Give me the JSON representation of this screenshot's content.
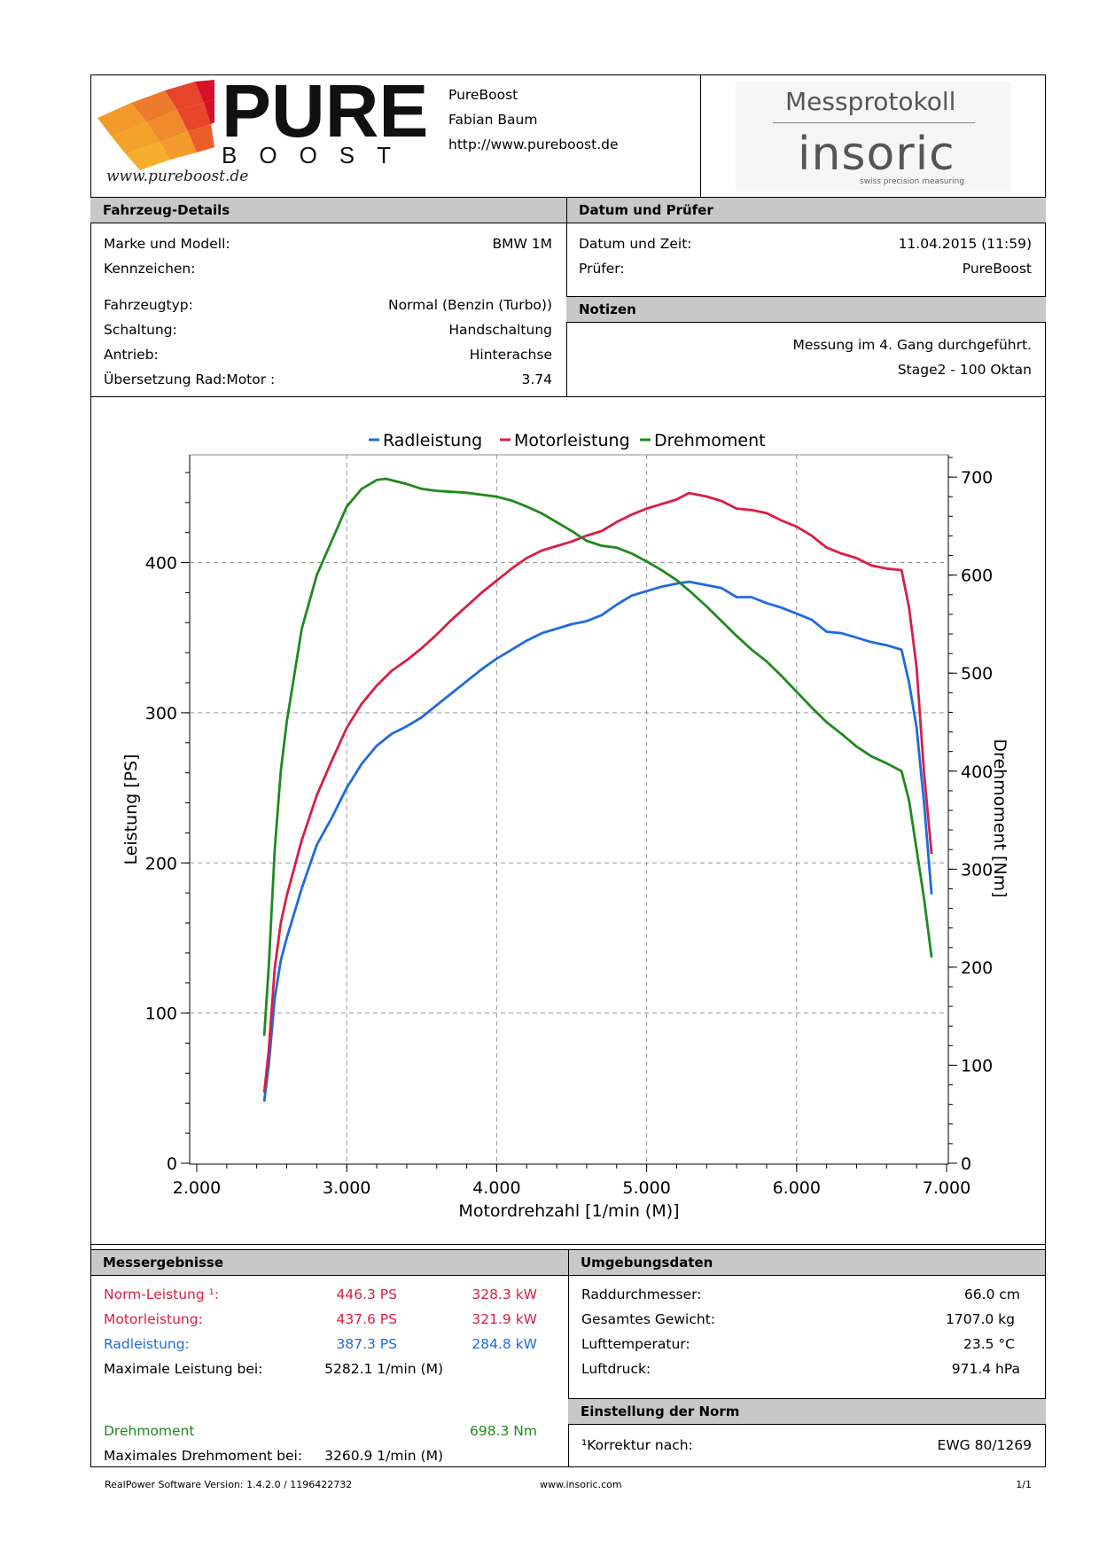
{
  "header": {
    "company_name": "PureBoost",
    "person": "Fabian Baum",
    "url": "http://www.pureboost.de",
    "logo_word": "PURE",
    "logo_sub": "BOOST",
    "logo_script": "www.pureboost.de",
    "protocol_title": "Messprotokoll",
    "brand": "insoric",
    "brand_tagline": "swiss precision measuring"
  },
  "vehicle": {
    "section_title": "Fahrzeug-Details",
    "rows": [
      {
        "label": "Marke und Modell:",
        "value": "BMW 1M"
      },
      {
        "label": "Kennzeichen:",
        "value": ""
      },
      {
        "label": "Fahrzeugtyp:",
        "value": "Normal (Benzin (Turbo))"
      },
      {
        "label": "Schaltung:",
        "value": "Handschaltung"
      },
      {
        "label": "Antrieb:",
        "value": "Hinterachse"
      },
      {
        "label": "Übersetzung Rad:Motor :",
        "value": "3.74"
      }
    ]
  },
  "date_tester": {
    "section_title": "Datum und Prüfer",
    "rows": [
      {
        "label": "Datum und Zeit:",
        "value": "11.04.2015 (11:59)"
      },
      {
        "label": "Prüfer:",
        "value": "PureBoost"
      }
    ]
  },
  "notes": {
    "section_title": "Notizen",
    "lines": [
      "Messung im 4. Gang durchgeführt.",
      "Stage2 - 100 Oktan"
    ]
  },
  "chart_data": {
    "type": "line",
    "legend": [
      "Radleistung",
      "Motorleistung",
      "Drehmoment"
    ],
    "legend_placement": "top-center",
    "xlabel": "Motordrehzahl [1/min (M)]",
    "ylabel_left": "Leistung [PS]",
    "ylabel_right": "Drehmoment [Nm]",
    "xlim": [
      2000,
      7000
    ],
    "ylim_left": [
      0,
      470
    ],
    "ylim_right": [
      0,
      720
    ],
    "x_ticks": [
      "2.000",
      "3.000",
      "4.000",
      "5.000",
      "6.000",
      "7.000"
    ],
    "y_left_ticks": [
      "0",
      "100",
      "200",
      "300",
      "400"
    ],
    "y_right_ticks": [
      "0",
      "100",
      "200",
      "300",
      "400",
      "500",
      "600",
      "700"
    ],
    "grid": true,
    "colors": {
      "Radleistung": "#1e6be0",
      "Motorleistung": "#d81f45",
      "Drehmoment": "#1f8a1f"
    },
    "series": [
      {
        "name": "Radleistung",
        "axis": "left",
        "x": [
          2450,
          2480,
          2520,
          2560,
          2600,
          2700,
          2800,
          2900,
          3000,
          3100,
          3200,
          3300,
          3400,
          3500,
          3600,
          3700,
          3800,
          3900,
          4000,
          4100,
          4200,
          4300,
          4400,
          4500,
          4600,
          4700,
          4800,
          4900,
          5000,
          5100,
          5200,
          5282,
          5400,
          5500,
          5600,
          5700,
          5800,
          5900,
          6000,
          6100,
          6200,
          6300,
          6400,
          6500,
          6600,
          6700,
          6750,
          6800,
          6850,
          6900
        ],
        "y": [
          41,
          65,
          110,
          135,
          150,
          183,
          212,
          230,
          250,
          266,
          278,
          286,
          291,
          297,
          305,
          313,
          321,
          329,
          336,
          342,
          348,
          353,
          356,
          359,
          361,
          365,
          372,
          378,
          381,
          384,
          386,
          387.3,
          385,
          383,
          377,
          377,
          373,
          370,
          366,
          362,
          354,
          353,
          350,
          347,
          345,
          342,
          320,
          290,
          240,
          179
        ]
      },
      {
        "name": "Motorleistung",
        "axis": "left",
        "x": [
          2450,
          2480,
          2520,
          2560,
          2600,
          2700,
          2800,
          2900,
          3000,
          3100,
          3200,
          3300,
          3400,
          3500,
          3600,
          3700,
          3800,
          3900,
          4000,
          4100,
          4200,
          4300,
          4400,
          4500,
          4600,
          4700,
          4800,
          4900,
          5000,
          5100,
          5200,
          5282,
          5400,
          5500,
          5600,
          5700,
          5800,
          5900,
          6000,
          6100,
          6200,
          6300,
          6400,
          6500,
          6600,
          6700,
          6750,
          6800,
          6850,
          6900
        ],
        "y": [
          47,
          75,
          130,
          160,
          178,
          215,
          245,
          268,
          290,
          306,
          318,
          328,
          335,
          343,
          352,
          362,
          371,
          380,
          388,
          396,
          403,
          408,
          411,
          414,
          418,
          421,
          427,
          432,
          436,
          439,
          442,
          446.3,
          444,
          441,
          436,
          435,
          433,
          428,
          424,
          418,
          410,
          406,
          403,
          398,
          396,
          395,
          370,
          330,
          260,
          206
        ]
      },
      {
        "name": "Drehmoment",
        "axis": "right",
        "x": [
          2450,
          2480,
          2520,
          2560,
          2600,
          2700,
          2800,
          2900,
          3000,
          3100,
          3200,
          3260,
          3400,
          3500,
          3600,
          3700,
          3800,
          3900,
          4000,
          4100,
          4200,
          4300,
          4400,
          4500,
          4600,
          4700,
          4800,
          4900,
          5000,
          5100,
          5200,
          5300,
          5400,
          5500,
          5600,
          5700,
          5800,
          5900,
          6000,
          6100,
          6200,
          6300,
          6400,
          6500,
          6600,
          6700,
          6750,
          6800,
          6850,
          6900
        ],
        "y": [
          130,
          200,
          320,
          400,
          450,
          545,
          600,
          635,
          670,
          688,
          697,
          698.3,
          693,
          688,
          686,
          685,
          684,
          682,
          680,
          676,
          670,
          663,
          654,
          645,
          635,
          630,
          628,
          622,
          614,
          605,
          595,
          582,
          568,
          553,
          538,
          524,
          512,
          497,
          481,
          465,
          450,
          438,
          425,
          415,
          408,
          400,
          370,
          320,
          270,
          210
        ]
      }
    ]
  },
  "results": {
    "section_title": "Messergebnisse",
    "rows": [
      {
        "label": "Norm-Leistung ¹:",
        "ps": "446.3 PS",
        "kw": "328.3 kW",
        "color": "#d81f45"
      },
      {
        "label": "Motorleistung:",
        "ps": "437.6 PS",
        "kw": "321.9 kW",
        "color": "#d81f45"
      },
      {
        "label": "Radleistung:",
        "ps": "387.3 PS",
        "kw": "284.8 kW",
        "color": "#1e6be0"
      }
    ],
    "max_power_label": "Maximale Leistung bei:",
    "max_power_rpm": "5282.1 1/min (M)",
    "torque_label": "Drehmoment",
    "torque_value": "698.3 Nm",
    "max_torque_label": "Maximales Drehmoment bei:",
    "max_torque_rpm": "3260.9 1/min (M)"
  },
  "environment": {
    "section_title": "Umgebungsdaten",
    "rows": [
      {
        "label": "Raddurchmesser:",
        "value": "66.0 cm"
      },
      {
        "label": "Gesamtes Gewicht:",
        "value": "1707.0 kg"
      },
      {
        "label": "Lufttemperatur:",
        "value": "23.5 °C"
      },
      {
        "label": "Luftdruck:",
        "value": "971.4 hPa"
      }
    ]
  },
  "norm": {
    "section_title": "Einstellung der Norm",
    "label": "¹Korrektur nach:",
    "value": "EWG 80/1269"
  },
  "footer": {
    "software": "RealPower Software Version: 1.4.2.0 / 1196422732",
    "site": "www.insoric.com",
    "page": "1/1"
  }
}
